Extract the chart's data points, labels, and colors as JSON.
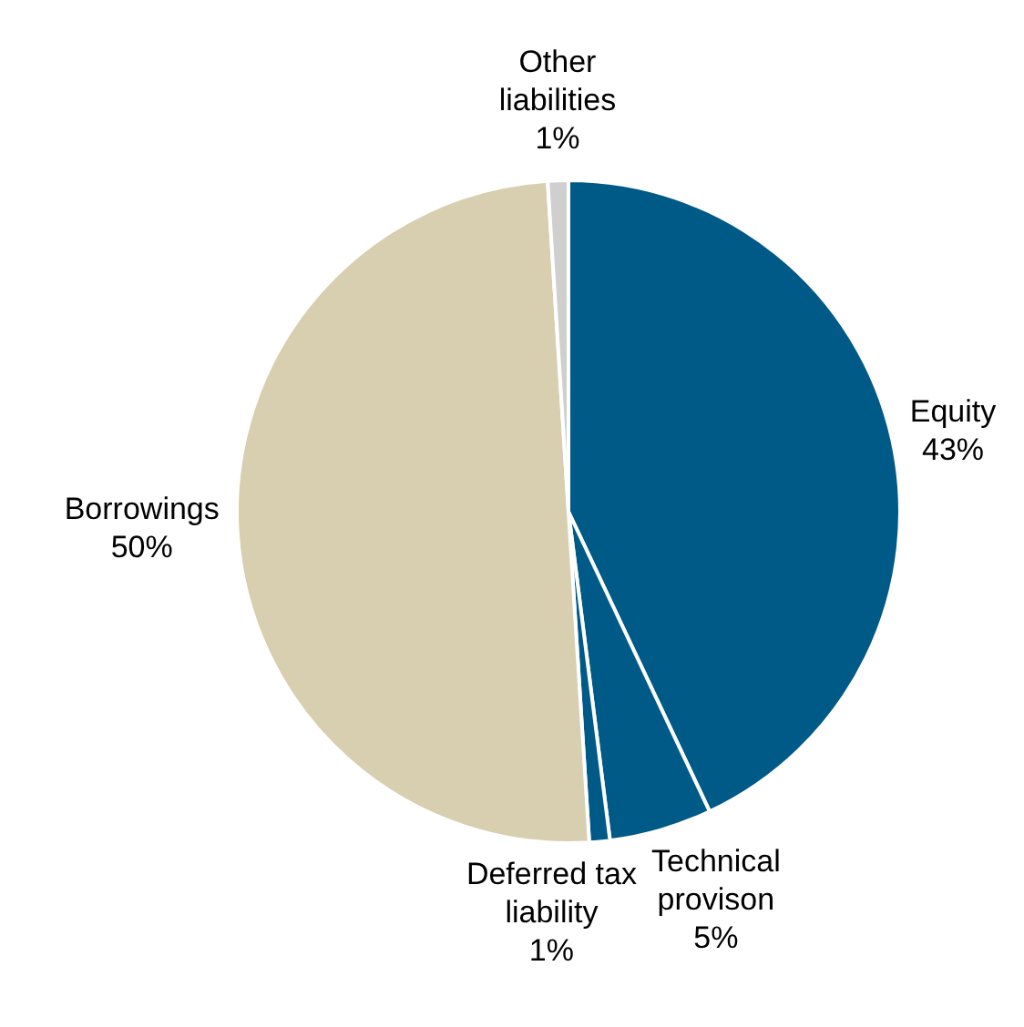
{
  "chart_data": {
    "type": "pie",
    "categories": [
      "Equity",
      "Technical provison",
      "Deferred tax liability",
      "Borrowings",
      "Other liabilities"
    ],
    "values": [
      43,
      5,
      1,
      50,
      1
    ],
    "colors": [
      "#005a87",
      "#005a87",
      "#005a87",
      "#d8cfb0",
      "#cfcfcf"
    ],
    "value_labels": [
      "43%",
      "5%",
      "1%",
      "50%",
      "1%"
    ],
    "legend": false
  }
}
